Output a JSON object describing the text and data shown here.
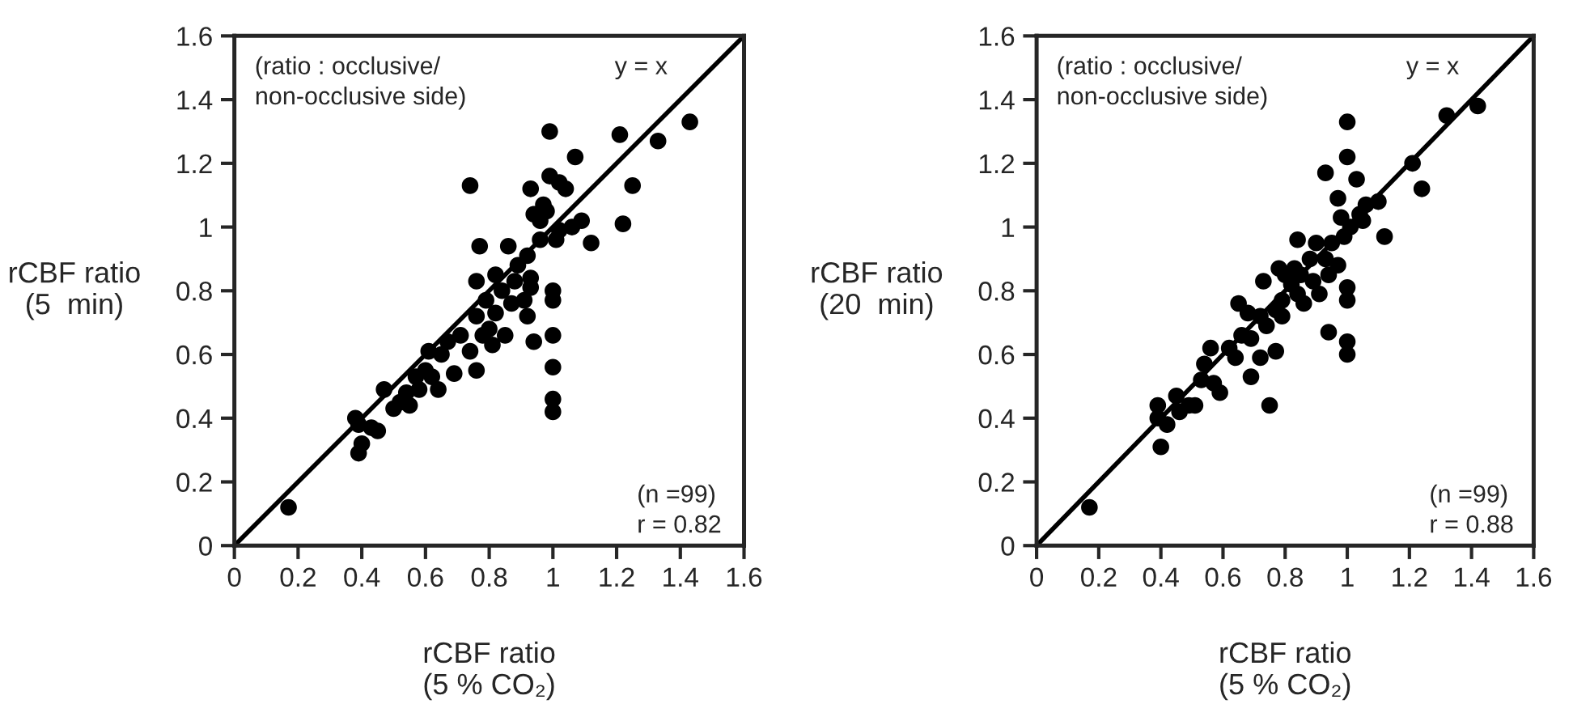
{
  "chart_data": [
    {
      "type": "scatter",
      "xlabel": "rCBF ratio\n(5 % CO₂)",
      "ylabel": "rCBF ratio\n(5  min)",
      "xlim": [
        0,
        1.6
      ],
      "ylim": [
        0,
        1.6
      ],
      "xticks": [
        0,
        0.2,
        0.4,
        0.6,
        0.8,
        1,
        1.2,
        1.4,
        1.6
      ],
      "yticks": [
        0,
        0.2,
        0.4,
        0.6,
        0.8,
        1,
        1.2,
        1.4,
        1.6
      ],
      "grid": false,
      "legend": false,
      "marker": "circle",
      "annotations": [
        "(ratio : occlusive/\nnon-occlusive side)",
        "y = x",
        "(n =99)\nr = 0.82"
      ],
      "series": [
        {
          "color": "#000000",
          "x": [
            0.17,
            0.38,
            0.39,
            0.4,
            0.39,
            0.43,
            0.45,
            0.47,
            0.5,
            0.52,
            0.54,
            0.55,
            0.57,
            0.58,
            0.6,
            0.62,
            0.61,
            0.64,
            0.65,
            0.67,
            0.69,
            0.71,
            0.74,
            0.74,
            0.76,
            0.76,
            0.76,
            0.77,
            0.78,
            0.79,
            0.8,
            0.81,
            0.82,
            0.82,
            0.84,
            0.85,
            0.86,
            0.87,
            0.88,
            0.89,
            0.91,
            0.92,
            0.92,
            0.93,
            0.93,
            0.94,
            0.93,
            0.94,
            0.96,
            0.96,
            0.97,
            0.98,
            0.99,
            0.99,
            1.0,
            1.0,
            1.0,
            1.0,
            1.0,
            1.0,
            1.01,
            1.02,
            1.04,
            1.02,
            1.06,
            1.07,
            1.09,
            1.12,
            1.21,
            1.22,
            1.25,
            1.33,
            1.43
          ],
          "values": [
            0.12,
            0.4,
            0.38,
            0.32,
            0.29,
            0.37,
            0.36,
            0.49,
            0.43,
            0.45,
            0.48,
            0.44,
            0.53,
            0.49,
            0.55,
            0.53,
            0.61,
            0.49,
            0.6,
            0.64,
            0.54,
            0.66,
            1.13,
            0.61,
            0.55,
            0.72,
            0.83,
            0.94,
            0.66,
            0.77,
            0.68,
            0.63,
            0.73,
            0.85,
            0.8,
            0.66,
            0.94,
            0.76,
            0.83,
            0.88,
            0.77,
            0.72,
            0.91,
            0.81,
            0.84,
            1.04,
            1.12,
            0.64,
            1.02,
            0.96,
            1.07,
            1.05,
            1.3,
            1.16,
            0.8,
            0.77,
            0.66,
            0.56,
            0.46,
            0.42,
            0.96,
            1.14,
            1.12,
            0.99,
            1.0,
            1.22,
            1.02,
            0.95,
            1.29,
            1.01,
            1.13,
            1.27,
            1.33
          ]
        },
        {
          "type": "line",
          "color": "#000000",
          "marker": "none",
          "line_style": "solid",
          "x": [
            0,
            1.6
          ],
          "values": [
            0,
            1.6
          ]
        }
      ]
    },
    {
      "type": "scatter",
      "xlabel": "rCBF ratio\n(5 % CO₂)",
      "ylabel": "rCBF ratio\n(20  min)",
      "xlim": [
        0,
        1.6
      ],
      "ylim": [
        0,
        1.6
      ],
      "xticks": [
        0,
        0.2,
        0.4,
        0.6,
        0.8,
        1,
        1.2,
        1.4,
        1.6
      ],
      "yticks": [
        0,
        0.2,
        0.4,
        0.6,
        0.8,
        1,
        1.2,
        1.4,
        1.6
      ],
      "grid": false,
      "legend": false,
      "marker": "circle",
      "annotations": [
        "(ratio : occlusive/\nnon-occlusive side)",
        "y = x",
        "(n =99)\nr = 0.88"
      ],
      "series": [
        {
          "color": "#000000",
          "x": [
            0.17,
            0.39,
            0.39,
            0.4,
            0.42,
            0.45,
            0.46,
            0.49,
            0.51,
            0.53,
            0.54,
            0.56,
            0.57,
            0.59,
            0.62,
            0.64,
            0.65,
            0.66,
            0.68,
            0.69,
            0.69,
            0.72,
            0.72,
            0.73,
            0.74,
            0.75,
            0.77,
            0.77,
            0.78,
            0.79,
            0.79,
            0.8,
            0.82,
            0.83,
            0.84,
            0.84,
            0.85,
            0.86,
            0.88,
            0.89,
            0.9,
            0.91,
            0.93,
            0.93,
            0.94,
            0.94,
            0.95,
            0.97,
            0.97,
            0.98,
            0.99,
            1.0,
            1.0,
            1.0,
            1.0,
            1.0,
            1.0,
            1.01,
            1.03,
            1.04,
            1.05,
            1.06,
            1.1,
            1.12,
            1.21,
            1.24,
            1.32,
            1.42
          ],
          "values": [
            0.12,
            0.44,
            0.4,
            0.31,
            0.38,
            0.47,
            0.42,
            0.44,
            0.44,
            0.52,
            0.57,
            0.62,
            0.51,
            0.48,
            0.62,
            0.59,
            0.76,
            0.66,
            0.73,
            0.65,
            0.53,
            0.72,
            0.59,
            0.83,
            0.69,
            0.44,
            0.61,
            0.74,
            0.87,
            0.77,
            0.72,
            0.85,
            0.82,
            0.87,
            0.79,
            0.96,
            0.85,
            0.76,
            0.9,
            0.83,
            0.95,
            0.79,
            1.17,
            0.9,
            0.85,
            0.67,
            0.95,
            0.88,
            1.09,
            1.03,
            0.97,
            1.33,
            1.22,
            0.81,
            0.77,
            0.64,
            0.6,
            1.0,
            1.15,
            1.04,
            1.02,
            1.07,
            1.08,
            0.97,
            1.2,
            1.12,
            1.35,
            1.38
          ]
        },
        {
          "type": "line",
          "color": "#000000",
          "marker": "none",
          "line_style": "solid",
          "x": [
            0,
            1.6
          ],
          "values": [
            0,
            1.6
          ]
        }
      ]
    }
  ]
}
